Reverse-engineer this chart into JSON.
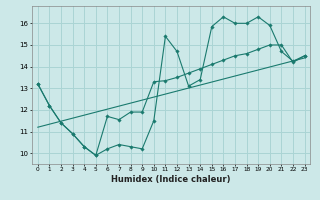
{
  "xlabel": "Humidex (Indice chaleur)",
  "bg_color": "#cce8e8",
  "grid_color": "#aad4d4",
  "line_color": "#1a7a6e",
  "xlim": [
    -0.5,
    23.5
  ],
  "ylim": [
    9.5,
    16.8
  ],
  "xticks": [
    0,
    1,
    2,
    3,
    4,
    5,
    6,
    7,
    8,
    9,
    10,
    11,
    12,
    13,
    14,
    15,
    16,
    17,
    18,
    19,
    20,
    21,
    22,
    23
  ],
  "yticks": [
    10,
    11,
    12,
    13,
    14,
    15,
    16
  ],
  "line1_x": [
    0,
    1,
    2,
    3,
    4,
    5,
    6,
    7,
    8,
    9,
    10,
    11,
    12,
    13,
    14,
    15,
    16,
    17,
    18,
    19,
    20,
    21,
    22,
    23
  ],
  "line1_y": [
    13.2,
    12.2,
    11.4,
    10.9,
    10.3,
    9.9,
    10.2,
    10.4,
    10.3,
    10.2,
    11.5,
    15.4,
    14.7,
    13.1,
    13.4,
    15.85,
    16.3,
    16.0,
    16.0,
    16.3,
    15.9,
    14.7,
    14.25,
    14.5
  ],
  "line2_x": [
    0,
    1,
    2,
    3,
    4,
    5,
    6,
    7,
    8,
    9,
    10,
    11,
    12,
    13,
    14,
    15,
    16,
    17,
    18,
    19,
    20,
    21,
    22,
    23
  ],
  "line2_y": [
    13.2,
    12.2,
    11.4,
    10.9,
    10.3,
    9.9,
    11.7,
    11.55,
    11.9,
    11.9,
    13.3,
    13.35,
    13.5,
    13.7,
    13.9,
    14.1,
    14.3,
    14.5,
    14.6,
    14.8,
    15.0,
    15.0,
    14.2,
    14.5
  ],
  "line3_x": [
    0,
    23
  ],
  "line3_y": [
    11.2,
    14.4
  ]
}
